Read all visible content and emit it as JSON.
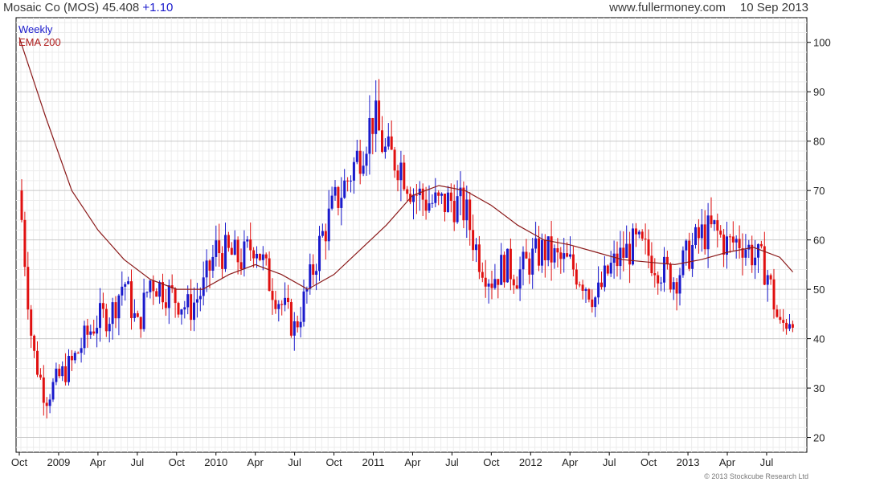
{
  "header": {
    "symbol": "Mosaic Co (MOS)",
    "price": "45.408",
    "change": "+1.10",
    "site": "www.fullermoney.com",
    "date": "10 Sep 2013"
  },
  "legend": {
    "period": "Weekly",
    "ema": "EMA 200"
  },
  "copyright": "© 2013 Stockcube Research Ltd",
  "colors": {
    "up": "#1a1acc",
    "down": "#e01010",
    "ema": "#8b1a1a",
    "grid": "#d8d8d8",
    "axis": "#000000"
  },
  "chart_data": {
    "type": "candlestick",
    "title": "Mosaic Co (MOS)",
    "ylim": [
      17,
      105
    ],
    "yticks": [
      20,
      30,
      40,
      50,
      60,
      70,
      80,
      90,
      100
    ],
    "xlabels": [
      "Oct",
      "2009",
      "Apr",
      "Jul",
      "Oct",
      "2010",
      "Apr",
      "Jul",
      "Oct",
      "2011",
      "Apr",
      "Jul",
      "Oct",
      "2012",
      "Apr",
      "Jul",
      "Oct",
      "2013",
      "Apr",
      "Jul"
    ],
    "grid": true,
    "price_series": {
      "name": "Weekly",
      "dates": [
        "2008-10",
        "2008-11",
        "2008-12",
        "2009-01",
        "2009-02",
        "2009-03",
        "2009-04",
        "2009-05",
        "2009-06",
        "2009-07",
        "2009-08",
        "2009-09",
        "2009-10",
        "2009-11",
        "2009-12",
        "2010-01",
        "2010-02",
        "2010-03",
        "2010-04",
        "2010-05",
        "2010-06",
        "2010-07",
        "2010-08",
        "2010-09",
        "2010-10",
        "2010-11",
        "2010-12",
        "2011-01",
        "2011-02",
        "2011-03",
        "2011-04",
        "2011-05",
        "2011-06",
        "2011-07",
        "2011-08",
        "2011-09",
        "2011-10",
        "2011-11",
        "2011-12",
        "2012-01",
        "2012-02",
        "2012-03",
        "2012-04",
        "2012-05",
        "2012-06",
        "2012-07",
        "2012-08",
        "2012-09",
        "2012-10",
        "2012-11",
        "2012-12",
        "2013-01",
        "2013-02",
        "2013-03",
        "2013-04",
        "2013-05",
        "2013-06",
        "2013-07",
        "2013-08",
        "2013-09"
      ],
      "close": [
        70,
        38,
        28,
        32,
        35,
        40,
        44,
        45,
        52,
        42,
        52,
        50,
        48,
        46,
        50,
        58,
        57,
        56,
        60,
        52,
        47,
        42,
        50,
        60,
        67,
        72,
        78,
        85,
        77,
        76,
        70,
        68,
        67,
        68,
        66,
        57,
        52,
        55,
        53,
        56,
        58,
        56,
        55,
        52,
        48,
        54,
        57,
        59,
        57,
        54,
        52,
        57,
        61,
        62,
        59,
        60,
        57,
        54,
        42,
        45.4
      ]
    },
    "ema_series": {
      "name": "EMA 200",
      "dates": [
        "2008-10",
        "2008-12",
        "2009-02",
        "2009-04",
        "2009-06",
        "2009-08",
        "2009-10",
        "2009-12",
        "2010-02",
        "2010-04",
        "2010-06",
        "2010-08",
        "2010-10",
        "2010-12",
        "2011-02",
        "2011-04",
        "2011-06",
        "2011-08",
        "2011-10",
        "2011-12",
        "2012-02",
        "2012-04",
        "2012-06",
        "2012-08",
        "2012-10",
        "2012-12",
        "2013-02",
        "2013-04",
        "2013-06",
        "2013-08",
        "2013-09"
      ],
      "values": [
        101,
        85,
        70,
        62,
        56,
        52,
        50,
        50,
        53,
        55,
        53,
        50,
        53,
        58,
        63,
        69,
        71,
        70,
        67,
        63,
        60,
        59,
        57.5,
        56,
        55.5,
        55,
        56,
        57.5,
        58.5,
        56.5,
        53.5
      ]
    }
  }
}
